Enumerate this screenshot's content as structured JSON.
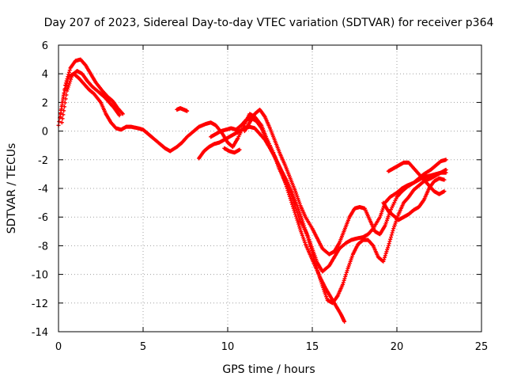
{
  "chart_data": {
    "type": "scatter",
    "title": "Day 207 of 2023, Sidereal Day-to-day VTEC variation (SDTVAR) for receiver p364",
    "xlabel": "GPS time / hours",
    "ylabel": "SDTVAR / TECUs",
    "xlim": [
      0,
      25
    ],
    "ylim": [
      -14,
      6
    ],
    "xticks": [
      0,
      5,
      10,
      15,
      20,
      25
    ],
    "yticks": [
      -14,
      -12,
      -10,
      -8,
      -6,
      -4,
      -2,
      0,
      2,
      4,
      6
    ],
    "grid": true,
    "marker": "+",
    "color": "#ff0000",
    "series": [
      {
        "x": [
          0.0,
          0.3,
          0.6,
          0.9,
          1.2,
          1.5,
          1.8,
          2.1,
          2.5,
          2.8,
          3.1,
          3.4,
          3.7,
          4.0,
          4.3,
          4.7,
          5.0,
          5.3,
          5.6,
          6.0,
          6.3,
          6.6,
          7.0,
          7.3,
          7.6,
          8.0,
          8.3,
          8.7,
          9.0,
          9.3,
          9.7,
          10.0,
          10.3,
          10.6,
          11.0,
          11.3,
          11.6,
          12.0,
          12.3,
          12.7,
          13.0,
          13.3,
          13.7,
          14.0,
          14.3,
          14.7,
          15.0,
          15.3,
          15.6,
          16.0,
          16.3,
          16.6,
          17.0,
          17.3,
          17.6,
          18.0,
          18.3,
          18.6,
          19.0,
          19.3,
          19.6,
          20.0,
          20.3,
          20.6,
          21.0,
          21.3,
          21.6,
          22.0,
          22.3,
          22.6,
          22.9
        ],
        "y": [
          0.4,
          2.5,
          3.8,
          4.0,
          3.7,
          3.3,
          2.9,
          2.6,
          2.0,
          1.2,
          0.6,
          0.2,
          0.1,
          0.3,
          0.3,
          0.2,
          0.1,
          -0.2,
          -0.5,
          -0.9,
          -1.2,
          -1.4,
          -1.1,
          -0.8,
          -0.4,
          0.0,
          0.3,
          0.5,
          0.6,
          0.4,
          -0.2,
          -0.8,
          -1.1,
          -0.5,
          0.5,
          1.2,
          1.0,
          0.4,
          -0.5,
          -1.5,
          -2.5,
          -3.3,
          -4.2,
          -5.3,
          -6.3,
          -7.2,
          -8.2,
          -9.2,
          -9.8,
          -9.4,
          -8.8,
          -8.2,
          -7.8,
          -7.6,
          -7.5,
          -7.4,
          -7.2,
          -6.8,
          -6.0,
          -5.0,
          -4.6,
          -4.3,
          -4.0,
          -3.8,
          -3.6,
          -3.4,
          -3.2,
          -3.1,
          -3.0,
          -2.9,
          -2.9
        ]
      },
      {
        "x": [
          0.1,
          0.4,
          0.7,
          1.0,
          1.3,
          1.6,
          1.9,
          2.2,
          2.6,
          2.9,
          3.2,
          3.5,
          3.8,
          11.0,
          11.3,
          11.6,
          11.9,
          12.2,
          12.5,
          12.8,
          13.1,
          13.4,
          13.7,
          14.0,
          14.3,
          14.6,
          15.0,
          15.3,
          15.6,
          16.0,
          16.3,
          16.6,
          16.9,
          17.2,
          17.5,
          17.8,
          18.1,
          18.4,
          18.7,
          19.0,
          19.3,
          19.6,
          20.0,
          20.3,
          20.6,
          21.0,
          21.3,
          21.6,
          22.0,
          22.3,
          22.6,
          22.9
        ],
        "y": [
          1.0,
          3.2,
          4.4,
          4.9,
          5.0,
          4.6,
          4.0,
          3.4,
          2.8,
          2.4,
          2.1,
          1.6,
          1.2,
          0.0,
          0.6,
          1.2,
          1.5,
          1.0,
          0.2,
          -0.7,
          -1.6,
          -2.4,
          -3.3,
          -4.2,
          -5.2,
          -6.0,
          -6.8,
          -7.5,
          -8.2,
          -8.6,
          -8.4,
          -7.8,
          -6.9,
          -6.0,
          -5.4,
          -5.3,
          -5.4,
          -6.2,
          -7.0,
          -7.2,
          -6.6,
          -5.6,
          -4.6,
          -4.2,
          -3.9,
          -3.6,
          -3.3,
          -3.0,
          -2.7,
          -2.4,
          -2.1,
          -2.0
        ]
      },
      {
        "x": [
          0.2,
          0.5,
          0.8,
          1.1,
          1.4,
          1.7,
          2.0,
          2.4,
          2.7,
          3.0,
          3.3,
          3.6,
          9.0,
          9.3,
          9.6,
          9.9,
          10.2,
          10.5,
          10.8,
          11.1,
          11.4,
          11.7,
          12.0,
          12.3,
          12.6,
          12.9,
          13.2,
          13.5,
          13.8,
          14.1,
          14.4,
          14.7,
          15.0,
          15.3,
          15.6,
          15.9,
          16.2,
          16.5,
          16.8,
          17.1,
          17.4,
          17.7,
          18.0,
          18.3,
          18.6,
          18.9,
          19.2,
          19.5,
          19.8,
          20.1,
          20.4,
          20.7,
          21.0,
          21.3,
          21.6,
          22.0,
          22.3,
          22.6,
          22.9
        ],
        "y": [
          0.6,
          2.8,
          3.9,
          4.2,
          4.0,
          3.5,
          3.1,
          2.7,
          2.4,
          2.0,
          1.6,
          1.1,
          -0.4,
          -0.2,
          0.0,
          0.1,
          0.2,
          0.1,
          0.4,
          0.8,
          0.9,
          0.7,
          0.2,
          -0.6,
          -1.4,
          -2.1,
          -2.8,
          -3.5,
          -4.3,
          -5.2,
          -6.2,
          -7.3,
          -8.5,
          -9.7,
          -10.8,
          -11.8,
          -12.0,
          -11.5,
          -10.7,
          -9.6,
          -8.6,
          -7.9,
          -7.6,
          -7.6,
          -8.0,
          -8.8,
          -9.1,
          -8.0,
          -6.8,
          -5.8,
          -5.0,
          -4.6,
          -4.1,
          -3.8,
          -3.5,
          -3.3,
          -3.1,
          -2.9,
          -2.7
        ]
      },
      {
        "x": [
          7.0,
          7.2,
          7.4,
          7.6,
          9.8,
          10.1,
          10.4,
          10.7
        ],
        "y": [
          1.5,
          1.6,
          1.5,
          1.4,
          -1.2,
          -1.4,
          -1.5,
          -1.3
        ]
      },
      {
        "x": [
          8.3,
          8.6,
          8.9,
          9.2,
          9.5,
          9.8,
          10.1,
          10.4,
          10.7,
          11.0,
          11.3,
          11.6,
          11.9,
          12.2,
          12.5,
          12.8,
          13.1,
          13.4,
          13.7,
          14.0,
          14.3,
          14.6,
          14.9,
          15.2,
          15.5,
          15.8,
          16.1,
          16.4,
          16.7,
          16.9
        ],
        "y": [
          -1.9,
          -1.4,
          -1.1,
          -0.9,
          -0.8,
          -0.6,
          -0.4,
          -0.2,
          0.0,
          0.2,
          0.3,
          0.2,
          -0.2,
          -0.6,
          -1.2,
          -1.8,
          -2.6,
          -3.6,
          -4.7,
          -5.8,
          -6.9,
          -7.9,
          -8.7,
          -9.5,
          -10.3,
          -11.0,
          -11.6,
          -12.2,
          -12.8,
          -13.3
        ]
      },
      {
        "x": [
          19.5,
          19.8,
          20.1,
          20.4,
          20.7,
          21.0,
          21.3,
          21.6,
          21.9,
          22.2,
          22.5,
          22.8
        ],
        "y": [
          -2.8,
          -2.6,
          -2.4,
          -2.2,
          -2.2,
          -2.6,
          -3.0,
          -3.4,
          -3.8,
          -4.2,
          -4.4,
          -4.2
        ]
      },
      {
        "x": [
          19.2,
          19.5,
          19.8,
          20.1,
          20.4,
          20.7,
          21.0,
          21.3,
          21.6,
          21.9,
          22.2,
          22.5,
          22.8
        ],
        "y": [
          -5.0,
          -5.6,
          -5.9,
          -6.2,
          -6.0,
          -5.8,
          -5.5,
          -5.3,
          -4.8,
          -4.0,
          -3.5,
          -3.3,
          -3.4
        ]
      }
    ]
  }
}
